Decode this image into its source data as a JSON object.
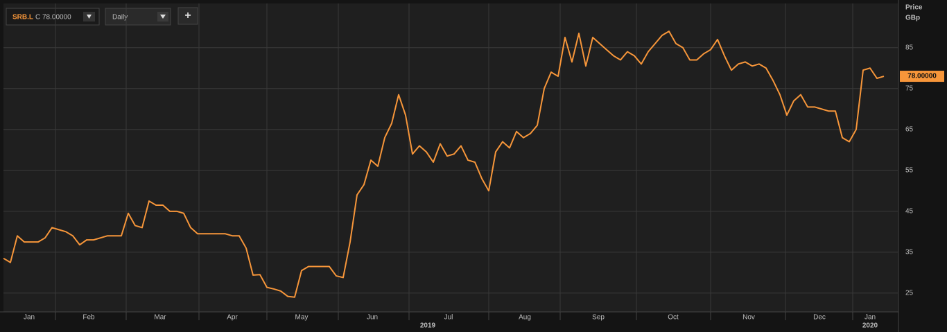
{
  "toolbar": {
    "symbol": "SRB.L",
    "close": "C 78.00000",
    "interval": "Daily",
    "add": "+"
  },
  "chart_data": {
    "type": "line",
    "axis_title": [
      "Price",
      "GBp"
    ],
    "series": [
      {
        "color": "#f7963a",
        "values": [
          33.5,
          32.5,
          39,
          37.5,
          37.5,
          37.5,
          38.5,
          41,
          40.5,
          40,
          39,
          36.8,
          38,
          38,
          38.5,
          39,
          39,
          39,
          44.5,
          41.5,
          41,
          47.5,
          46.5,
          46.5,
          45,
          45,
          44.5,
          41,
          39.5,
          39.5,
          39.5,
          39.5,
          39.5,
          39,
          39,
          36,
          29.4,
          29.5,
          26.4,
          26,
          25.5,
          24.2,
          24,
          30.5,
          31.5,
          31.5,
          31.5,
          31.5,
          29.2,
          28.8,
          37.5,
          49,
          51.5,
          57.5,
          56,
          63,
          66.5,
          73.5,
          68.5,
          59,
          61,
          59.5,
          57,
          61.5,
          58.5,
          59,
          61,
          57.5,
          57,
          53,
          50,
          59.5,
          62,
          60.5,
          64.5,
          63,
          64,
          66,
          75,
          79,
          78,
          87.5,
          81.5,
          88.5,
          80.5,
          87.5,
          86,
          84.5,
          83,
          82,
          84,
          83,
          81,
          84,
          86,
          88,
          89,
          86,
          85,
          82,
          82,
          83.5,
          84.5,
          87,
          83,
          79.5,
          81,
          81.5,
          80.5,
          81,
          80,
          77,
          73.5,
          68.5,
          72,
          73.5,
          70.5,
          70.5,
          70,
          69.5,
          69.5,
          63,
          62,
          65,
          79.5,
          80,
          77.5,
          78
        ]
      }
    ],
    "last_price": {
      "value": 78,
      "label": "78.00000"
    },
    "xlim": [
      0,
      129
    ],
    "xticks": [
      7.5,
      17.7,
      28.2,
      38,
      48.3,
      58.5,
      70,
      80.3,
      91.3,
      102,
      112.8,
      122.5
    ],
    "xlabels": [
      {
        "value": 3.7,
        "label": "Jan"
      },
      {
        "value": 12.3,
        "label": "Feb"
      },
      {
        "value": 22.6,
        "label": "Mar"
      },
      {
        "value": 33,
        "label": "Apr"
      },
      {
        "value": 43,
        "label": "May"
      },
      {
        "value": 53.2,
        "label": "Jun"
      },
      {
        "value": 64.2,
        "label": "Jul"
      },
      {
        "value": 75.2,
        "label": "Aug"
      },
      {
        "value": 85.8,
        "label": "Sep"
      },
      {
        "value": 96.6,
        "label": "Oct"
      },
      {
        "value": 107.5,
        "label": "Nov"
      },
      {
        "value": 117.7,
        "label": "Dec"
      },
      {
        "value": 125,
        "label": "Jan"
      }
    ],
    "year_labels": [
      {
        "value": 61.2,
        "label": "2019"
      },
      {
        "value": 125,
        "label": "2020"
      }
    ],
    "ylim": [
      20.4,
      95.8
    ],
    "yticks": [
      25,
      35,
      45,
      55,
      65,
      75,
      85
    ],
    "grid": true
  }
}
